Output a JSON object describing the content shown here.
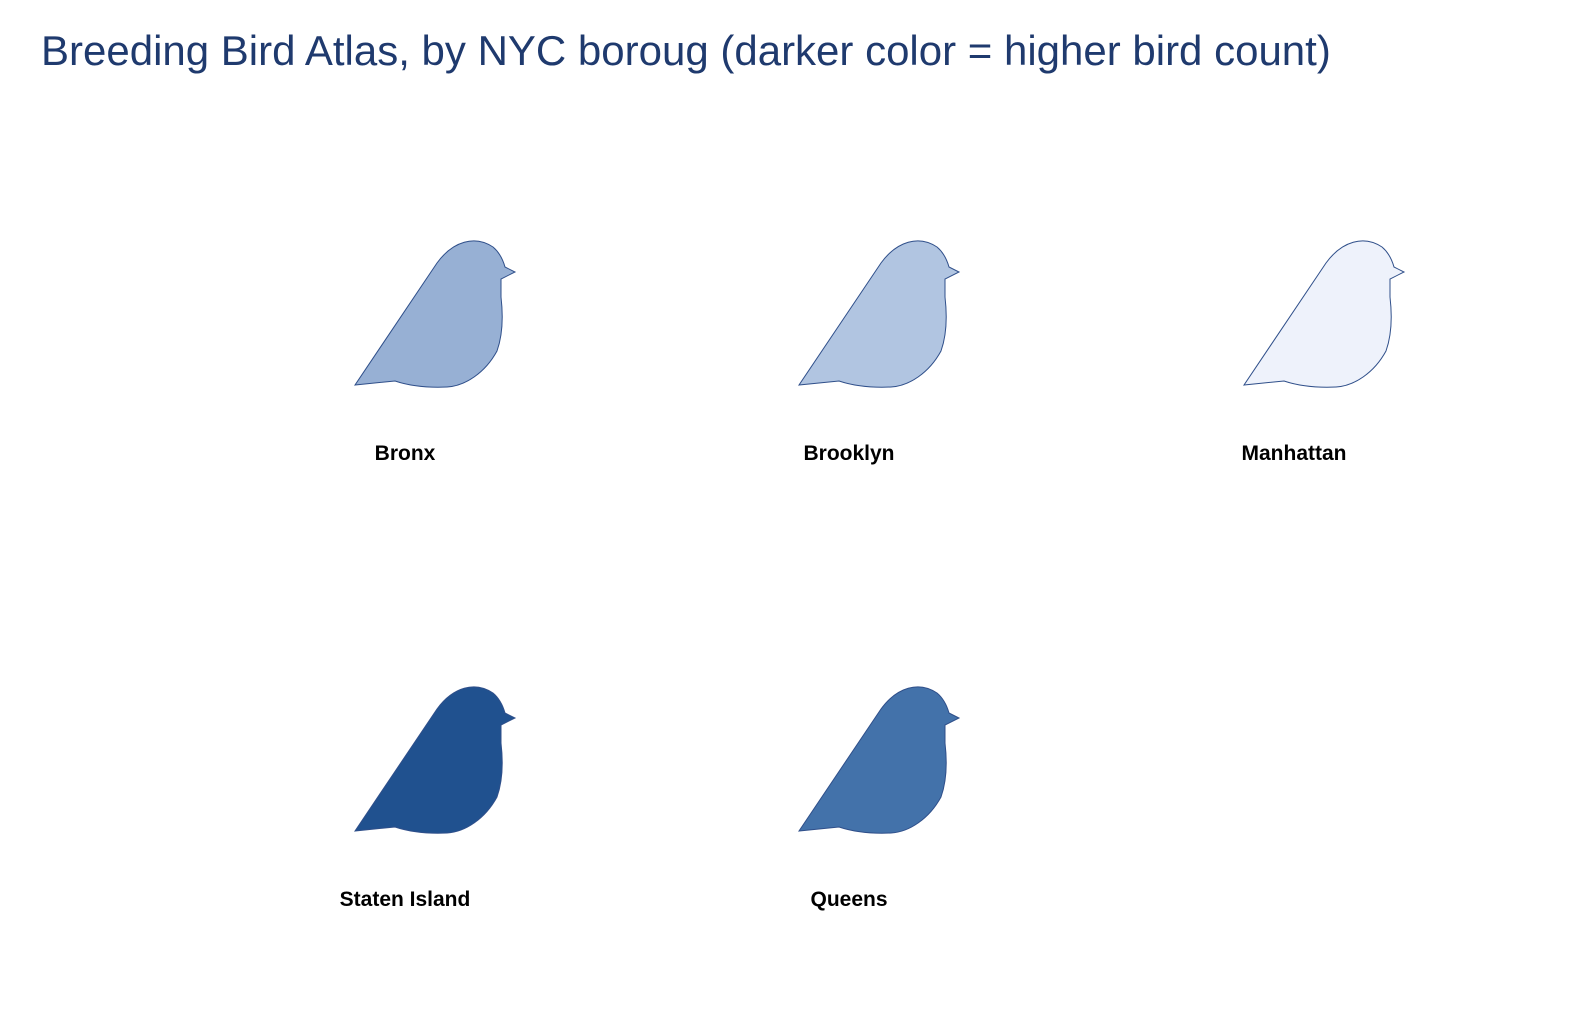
{
  "chart_data": {
    "type": "pictogram",
    "title": "Breeding Bird Atlas, by NYC boroug (darker color = higher bird count)",
    "icon": "bird-icon",
    "boroughs": [
      {
        "name": "Bronx",
        "color": "#97b0d4"
      },
      {
        "name": "Brooklyn",
        "color": "#b1c5e1"
      },
      {
        "name": "Manhattan",
        "color": "#eef2fb"
      },
      {
        "name": "Staten Island",
        "color": "#20518f"
      },
      {
        "name": "Queens",
        "color": "#4372aa"
      }
    ]
  }
}
